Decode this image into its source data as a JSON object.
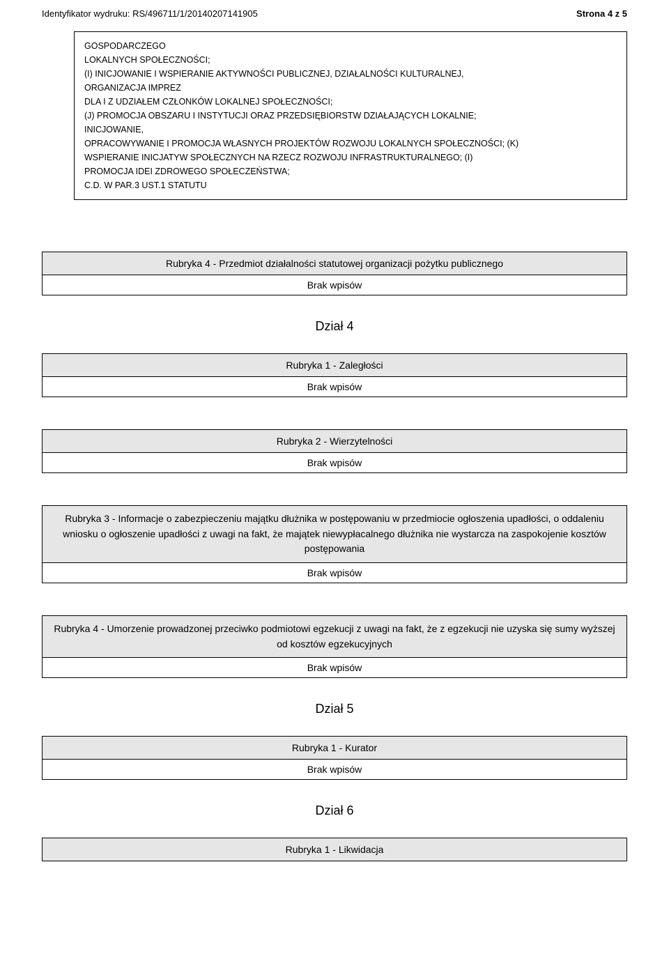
{
  "header": {
    "id_label": "Identyfikator wydruku:",
    "id_value": "RS/496711/1/20140207141905",
    "page_label": "Strona 4 z 5"
  },
  "top_box": {
    "lines": [
      "GOSPODARCZEGO",
      "LOKALNYCH SPOŁECZNOŚCI;",
      "(I) INICJOWANIE I WSPIERANIE AKTYWNOŚCI PUBLICZNEJ, DZIAŁALNOŚCI KULTURALNEJ,",
      "ORGANIZACJA IMPREZ",
      "DLA I Z UDZIAŁEM CZŁONKÓW LOKALNEJ SPOŁECZNOŚCI;",
      "(J) PROMOCJA OBSZARU I INSTYTUCJI ORAZ PRZEDSIĘBIORSTW DZIAŁAJĄCYCH LOKALNIE;",
      "INICJOWANIE,",
      "OPRACOWYWANIE I PROMOCJA WŁASNYCH PROJEKTÓW ROZWOJU LOKALNYCH SPOŁECZNOŚCI; (K)",
      "WSPIERANIE INICJATYW SPOŁECZNYCH NA RZECZ ROZWOJU INFRASTRUKTURALNEGO; (I)",
      "PROMOCJA IDEI ZDROWEGO SPOŁECZEŃSTWA;",
      "C.D. W PAR.3 UST.1 STATUTU"
    ]
  },
  "labels": {
    "brak": "Brak wpisów"
  },
  "sections": [
    {
      "kind": "rubryka",
      "title": "Rubryka 4 - Przedmiot działalności statutowej organizacji pożytku publicznego",
      "brak": true
    },
    {
      "kind": "dzial",
      "title": "Dział 4"
    },
    {
      "kind": "rubryka",
      "title": "Rubryka 1 - Zaległości",
      "brak": true
    },
    {
      "kind": "rubryka",
      "title": "Rubryka 2 - Wierzytelności",
      "brak": true
    },
    {
      "kind": "rubryka",
      "title": "Rubryka 3 - Informacje o zabezpieczeniu majątku dłużnika w postępowaniu w przedmiocie ogłoszenia upadłości, o oddaleniu wniosku o ogłoszenie upadłości z uwagi na fakt, że majątek niewypłacalnego dłużnika nie wystarcza na zaspokojenie kosztów postępowania",
      "brak": true
    },
    {
      "kind": "rubryka",
      "title": "Rubryka 4 - Umorzenie prowadzonej przeciwko podmiotowi egzekucji z uwagi na fakt, że z egzekucji nie uzyska się sumy wyższej od kosztów egzekucyjnych",
      "brak": true
    },
    {
      "kind": "dzial",
      "title": "Dział 5"
    },
    {
      "kind": "rubryka",
      "title": "Rubryka 1 - Kurator",
      "brak": true
    },
    {
      "kind": "dzial",
      "title": "Dział 6"
    },
    {
      "kind": "rubryka",
      "title": "Rubryka 1 - Likwidacja",
      "brak": false
    }
  ],
  "style": {
    "rubryka_bg": "#e6e6e6",
    "page_bg": "#ffffff",
    "text_color": "#000000"
  }
}
